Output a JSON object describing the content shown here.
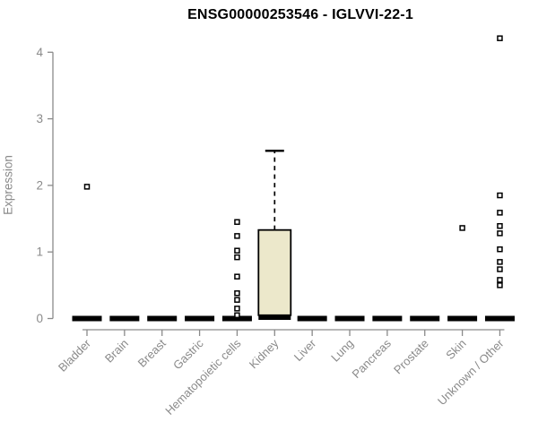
{
  "chart_data": {
    "type": "boxplot",
    "title": "ENSG00000253546 - IGLVVI-22-1",
    "ylabel": "Expression",
    "xlabel": "",
    "ylim": [
      0,
      4
    ],
    "yticks": [
      0,
      1,
      2,
      3,
      4
    ],
    "grid": false,
    "legend": "none",
    "categories": [
      "Bladder",
      "Brain",
      "Breast",
      "Gastric",
      "Hematopoietic cells",
      "Kidney",
      "Liver",
      "Lung",
      "Pancreas",
      "Prostate",
      "Skin",
      "Unknown / Other"
    ],
    "boxes": [
      {
        "category": "Bladder",
        "median": 0,
        "q1": 0,
        "q3": 0,
        "whisker_low": 0,
        "whisker_high": 0,
        "outliers": [
          1.98
        ]
      },
      {
        "category": "Brain",
        "median": 0,
        "q1": 0,
        "q3": 0,
        "whisker_low": 0,
        "whisker_high": 0,
        "outliers": []
      },
      {
        "category": "Breast",
        "median": 0,
        "q1": 0,
        "q3": 0,
        "whisker_low": 0,
        "whisker_high": 0,
        "outliers": []
      },
      {
        "category": "Gastric",
        "median": 0,
        "q1": 0,
        "q3": 0,
        "whisker_low": 0,
        "whisker_high": 0,
        "outliers": []
      },
      {
        "category": "Hematopoietic cells",
        "median": 0,
        "q1": 0,
        "q3": 0,
        "whisker_low": 0,
        "whisker_high": 0,
        "outliers": [
          1.45,
          1.24,
          1.02,
          0.92,
          0.63,
          0.38,
          0.28,
          0.15,
          0.05
        ]
      },
      {
        "category": "Kidney",
        "median": 0.02,
        "q1": 0.05,
        "q3": 1.33,
        "whisker_low": 0,
        "whisker_high": 2.52,
        "outliers": []
      },
      {
        "category": "Liver",
        "median": 0,
        "q1": 0,
        "q3": 0,
        "whisker_low": 0,
        "whisker_high": 0,
        "outliers": []
      },
      {
        "category": "Lung",
        "median": 0,
        "q1": 0,
        "q3": 0,
        "whisker_low": 0,
        "whisker_high": 0,
        "outliers": []
      },
      {
        "category": "Pancreas",
        "median": 0,
        "q1": 0,
        "q3": 0,
        "whisker_low": 0,
        "whisker_high": 0,
        "outliers": []
      },
      {
        "category": "Prostate",
        "median": 0,
        "q1": 0,
        "q3": 0,
        "whisker_low": 0,
        "whisker_high": 0,
        "outliers": []
      },
      {
        "category": "Skin",
        "median": 0,
        "q1": 0,
        "q3": 0,
        "whisker_low": 0,
        "whisker_high": 0,
        "outliers": [
          1.36
        ]
      },
      {
        "category": "Unknown / Other",
        "median": 0,
        "q1": 0,
        "q3": 0,
        "whisker_low": 0,
        "whisker_high": 0,
        "outliers": [
          4.21,
          1.85,
          1.59,
          1.39,
          1.28,
          1.04,
          0.85,
          0.74,
          0.58,
          0.5
        ]
      }
    ],
    "colors": {
      "background": "#FFFFFF",
      "box_fill": "#ECE8CB",
      "box_border": "#000000",
      "median": "#000000",
      "whisker": "#000000",
      "outlier_stroke": "#000000",
      "outlier_fill": "#FFFFFF",
      "axis": "#8A8A8A",
      "tick_text": "#8A8A8A",
      "title_text": "#000000"
    }
  }
}
